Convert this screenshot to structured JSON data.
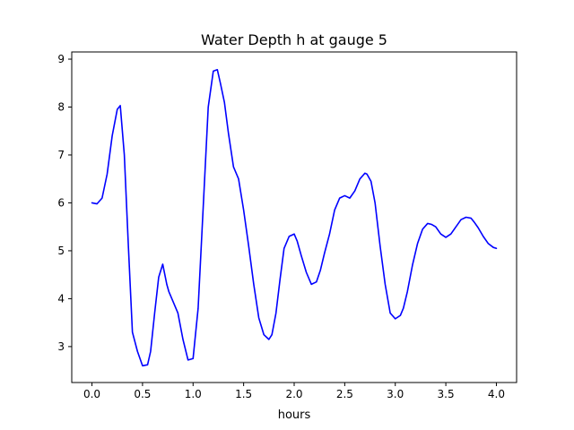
{
  "chart_data": {
    "type": "line",
    "title": "Water Depth h at gauge 5",
    "xlabel": "hours",
    "ylabel": "",
    "xlim": [
      -0.2,
      4.2
    ],
    "ylim": [
      2.25,
      9.15
    ],
    "x_ticks": [
      0.0,
      0.5,
      1.0,
      1.5,
      2.0,
      2.5,
      3.0,
      3.5,
      4.0
    ],
    "x_tick_labels": [
      "0.0",
      "0.5",
      "1.0",
      "1.5",
      "2.0",
      "2.5",
      "3.0",
      "3.5",
      "4.0"
    ],
    "y_ticks": [
      3,
      4,
      5,
      6,
      7,
      8,
      9
    ],
    "y_tick_labels": [
      "3",
      "4",
      "5",
      "6",
      "7",
      "8",
      "9"
    ],
    "grid": false,
    "series": [
      {
        "color": "#0000ff",
        "x": [
          0.0,
          0.05,
          0.1,
          0.15,
          0.2,
          0.25,
          0.28,
          0.32,
          0.36,
          0.4,
          0.45,
          0.5,
          0.55,
          0.58,
          0.62,
          0.66,
          0.7,
          0.74,
          0.76,
          0.8,
          0.85,
          0.9,
          0.95,
          1.0,
          1.05,
          1.1,
          1.15,
          1.2,
          1.24,
          1.27,
          1.31,
          1.35,
          1.4,
          1.45,
          1.5,
          1.55,
          1.6,
          1.65,
          1.7,
          1.75,
          1.78,
          1.82,
          1.86,
          1.9,
          1.95,
          2.0,
          2.03,
          2.07,
          2.12,
          2.17,
          2.22,
          2.26,
          2.3,
          2.35,
          2.4,
          2.45,
          2.5,
          2.55,
          2.6,
          2.65,
          2.7,
          2.72,
          2.76,
          2.8,
          2.85,
          2.9,
          2.95,
          3.0,
          3.05,
          3.08,
          3.12,
          3.17,
          3.22,
          3.27,
          3.32,
          3.36,
          3.4,
          3.45,
          3.5,
          3.55,
          3.6,
          3.65,
          3.7,
          3.75,
          3.78,
          3.82,
          3.87,
          3.92,
          3.97,
          4.0
        ],
        "y": [
          6.0,
          5.98,
          6.1,
          6.6,
          7.4,
          7.95,
          8.03,
          7.0,
          5.1,
          3.3,
          2.9,
          2.6,
          2.62,
          2.9,
          3.7,
          4.45,
          4.72,
          4.3,
          4.15,
          3.95,
          3.7,
          3.15,
          2.72,
          2.75,
          3.8,
          5.9,
          8.0,
          8.75,
          8.78,
          8.5,
          8.1,
          7.45,
          6.75,
          6.5,
          5.85,
          5.1,
          4.3,
          3.6,
          3.25,
          3.15,
          3.25,
          3.7,
          4.4,
          5.05,
          5.3,
          5.35,
          5.2,
          4.9,
          4.55,
          4.3,
          4.35,
          4.6,
          4.95,
          5.35,
          5.85,
          6.1,
          6.15,
          6.1,
          6.25,
          6.5,
          6.62,
          6.6,
          6.45,
          6.0,
          5.1,
          4.3,
          3.7,
          3.58,
          3.65,
          3.8,
          4.15,
          4.7,
          5.15,
          5.45,
          5.57,
          5.55,
          5.5,
          5.35,
          5.28,
          5.35,
          5.5,
          5.65,
          5.7,
          5.68,
          5.6,
          5.48,
          5.3,
          5.15,
          5.07,
          5.05
        ]
      }
    ]
  }
}
